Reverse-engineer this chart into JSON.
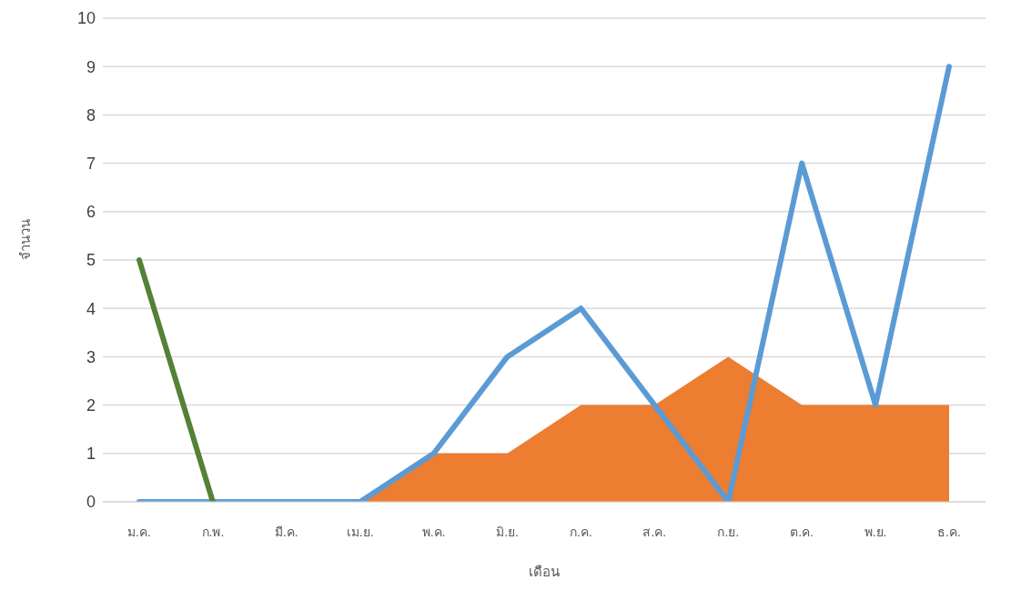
{
  "chart_data": {
    "type": "line",
    "xlabel": "เดือน",
    "ylabel": "จำนวน",
    "categories": [
      "ม.ค.",
      "ก.พ.",
      "มี.ค.",
      "เม.ย.",
      "พ.ค.",
      "มิ.ย.",
      "ก.ค.",
      "ส.ค.",
      "ก.ย.",
      "ต.ค.",
      "พ.ย.",
      "ธ.ค."
    ],
    "series": [
      {
        "type": "area",
        "color": "#ed7d31",
        "values": [
          null,
          null,
          null,
          0,
          1,
          1,
          2,
          2,
          3,
          2,
          2,
          2
        ]
      },
      {
        "color": "#5b9bd5",
        "values": [
          0,
          0,
          0,
          0,
          1,
          3,
          4,
          2,
          0,
          7,
          2,
          9
        ]
      },
      {
        "color": "#548235",
        "values": [
          5,
          0,
          null,
          null,
          null,
          null,
          null,
          null,
          null,
          null,
          null,
          null
        ]
      }
    ],
    "ylim": [
      0,
      10
    ],
    "yticks": [
      0,
      1,
      2,
      3,
      4,
      5,
      6,
      7,
      8,
      9,
      10
    ],
    "grid": "y",
    "legend": false,
    "marker": "none"
  }
}
